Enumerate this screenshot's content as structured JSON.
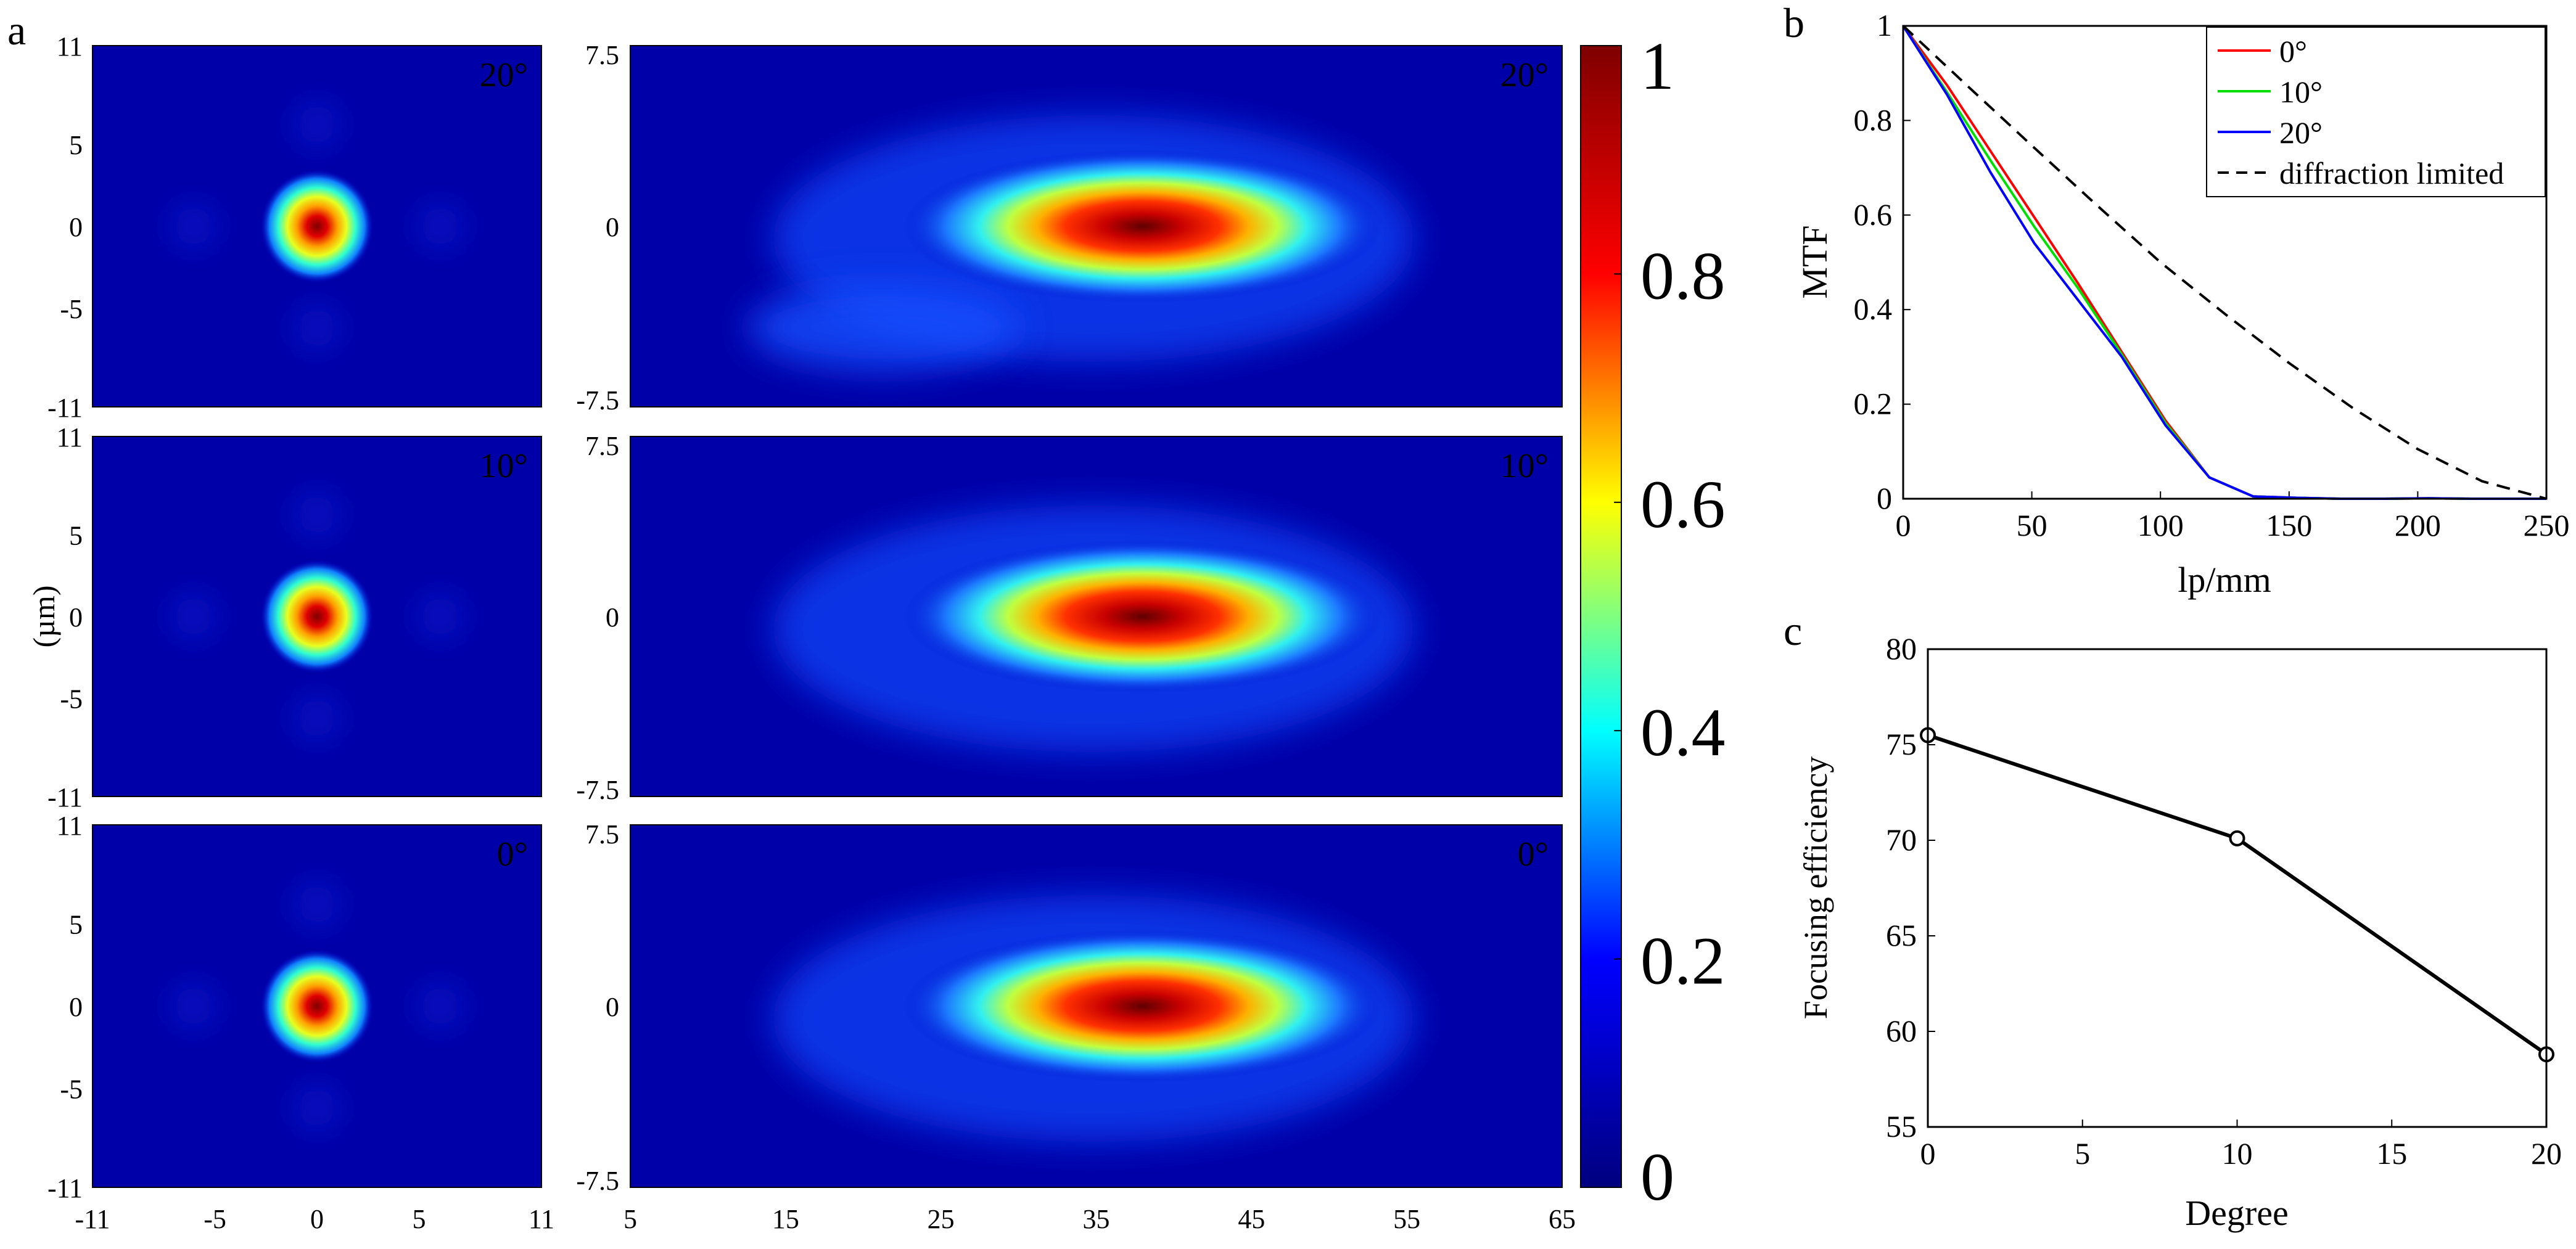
{
  "figure": {
    "panel_labels": {
      "a": "a",
      "b": "b",
      "c": "c"
    },
    "ylabel_a": "(µm)"
  },
  "heatmaps": {
    "angles": [
      20,
      10,
      0
    ],
    "angle_labels": [
      "20°",
      "10°",
      "0°"
    ],
    "xy": {
      "x_ticks": [
        "-11",
        "-5",
        "0",
        "5",
        "11"
      ],
      "x_tick_values": [
        -11,
        -5,
        0,
        5,
        11
      ],
      "y_ticks": [
        "11",
        "5",
        "0",
        "-5",
        "-11"
      ],
      "y_tick_values": [
        11,
        5,
        0,
        -5,
        -11
      ],
      "range": [
        -11,
        11
      ]
    },
    "xz": {
      "x_ticks": [
        "5",
        "15",
        "25",
        "35",
        "45",
        "55",
        "65"
      ],
      "x_tick_values": [
        5,
        15,
        25,
        35,
        45,
        55,
        65
      ],
      "y_ticks": [
        "7.5",
        "0",
        "-7.5"
      ],
      "y_tick_values": [
        7.5,
        0,
        -7.5
      ],
      "x_range": [
        5,
        65
      ],
      "y_range": [
        -7.5,
        7.5
      ],
      "focus_center_z": 38
    },
    "colorbar": {
      "ticks": [
        "1",
        "0.8",
        "0.6",
        "0.4",
        "0.2",
        "0"
      ],
      "tick_values": [
        1,
        0.8,
        0.6,
        0.4,
        0.2,
        0
      ],
      "colormap": [
        "#00007f",
        "#0000ff",
        "#00ffff",
        "#ffff00",
        "#ff0000",
        "#7f0000"
      ]
    }
  },
  "chart_data": [
    {
      "type": "line",
      "panel": "b",
      "xlabel": "lp/mm",
      "ylabel": "MTF",
      "xlim": [
        0,
        250
      ],
      "ylim": [
        0,
        1
      ],
      "x_ticks": [
        "0",
        "50",
        "100",
        "150",
        "200",
        "250"
      ],
      "y_ticks": [
        "0",
        "0.2",
        "0.4",
        "0.6",
        "0.8",
        "1"
      ],
      "legend_position": "top-right",
      "series": [
        {
          "name": "0°",
          "color": "#ff0000",
          "dash": "solid",
          "x": [
            0,
            17,
            34,
            51,
            68,
            85,
            102,
            119,
            136,
            153,
            170,
            187,
            204,
            221,
            238,
            250
          ],
          "y": [
            1,
            0.875,
            0.735,
            0.595,
            0.455,
            0.31,
            0.165,
            0.045,
            0.005,
            0.002,
            0,
            0,
            0.001,
            0,
            0,
            0
          ]
        },
        {
          "name": "10°",
          "color": "#00e000",
          "dash": "solid",
          "x": [
            0,
            17,
            34,
            51,
            68,
            85,
            102,
            119,
            136,
            153,
            170,
            187,
            204,
            221,
            238,
            250
          ],
          "y": [
            1,
            0.86,
            0.715,
            0.575,
            0.445,
            0.305,
            0.16,
            0.045,
            0.005,
            0.002,
            0,
            0,
            0.001,
            0,
            0,
            0
          ]
        },
        {
          "name": "20°",
          "color": "#0000ff",
          "dash": "solid",
          "x": [
            0,
            17,
            34,
            51,
            68,
            85,
            102,
            119,
            136,
            153,
            170,
            187,
            204,
            221,
            238,
            250
          ],
          "y": [
            1,
            0.855,
            0.69,
            0.54,
            0.42,
            0.3,
            0.155,
            0.045,
            0.005,
            0.002,
            0,
            0,
            0.001,
            0,
            0,
            0
          ]
        },
        {
          "name": "diffraction limited",
          "color": "#000000",
          "dash": "dashed",
          "x": [
            0,
            25,
            50,
            75,
            100,
            125,
            150,
            175,
            200,
            225,
            250
          ],
          "y": [
            1,
            0.873,
            0.747,
            0.622,
            0.5,
            0.391,
            0.287,
            0.191,
            0.105,
            0.037,
            0
          ]
        }
      ]
    },
    {
      "type": "line",
      "panel": "c",
      "xlabel": "Degree",
      "ylabel": "Focusing efficiency",
      "xlim": [
        0,
        20
      ],
      "ylim": [
        55,
        80
      ],
      "x_ticks": [
        "0",
        "5",
        "10",
        "15",
        "20"
      ],
      "y_ticks": [
        "55",
        "60",
        "65",
        "70",
        "75",
        "80"
      ],
      "series": [
        {
          "name": "Focusing efficiency",
          "color": "#000000",
          "marker": "circle",
          "x": [
            0,
            10,
            20
          ],
          "y": [
            75.5,
            70.1,
            58.8
          ]
        }
      ]
    }
  ]
}
